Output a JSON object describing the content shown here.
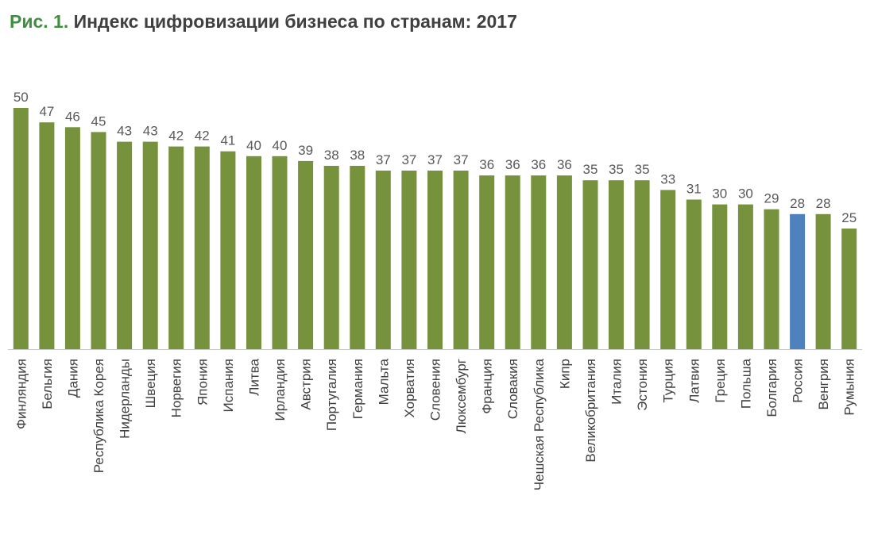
{
  "figure_label": "Рис. 1.",
  "figure_title": "Индекс цифровизации бизнеса по странам: 2017",
  "colors": {
    "bar": "#76923c",
    "highlight": "#4f81bd",
    "figure_label": "#3f8f3f",
    "title": "#404040",
    "axis": "#c8c8c8"
  },
  "chart_data": {
    "type": "bar",
    "title": "Индекс цифровизации бизнеса по странам: 2017",
    "xlabel": "",
    "ylabel": "",
    "ylim": [
      0,
      50
    ],
    "grid": false,
    "highlight_category": "Россия",
    "categories": [
      "Финляндия",
      "Бельгия",
      "Дания",
      "Республика Корея",
      "Нидерланды",
      "Швеция",
      "Норвегия",
      "Япония",
      "Испания",
      "Литва",
      "Ирландия",
      "Австрия",
      "Португалия",
      "Германия",
      "Мальта",
      "Хорватия",
      "Словения",
      "Люксембург",
      "Франция",
      "Словакия",
      "Чешская Республика",
      "Кипр",
      "Великобритания",
      "Италия",
      "Эстония",
      "Турция",
      "Латвия",
      "Греция",
      "Польша",
      "Болгария",
      "Россия",
      "Венгрия",
      "Румыния"
    ],
    "values": [
      50,
      47,
      46,
      45,
      43,
      43,
      42,
      42,
      41,
      40,
      40,
      39,
      38,
      38,
      37,
      37,
      37,
      37,
      36,
      36,
      36,
      36,
      35,
      35,
      35,
      33,
      31,
      30,
      30,
      29,
      28,
      28,
      25
    ]
  }
}
